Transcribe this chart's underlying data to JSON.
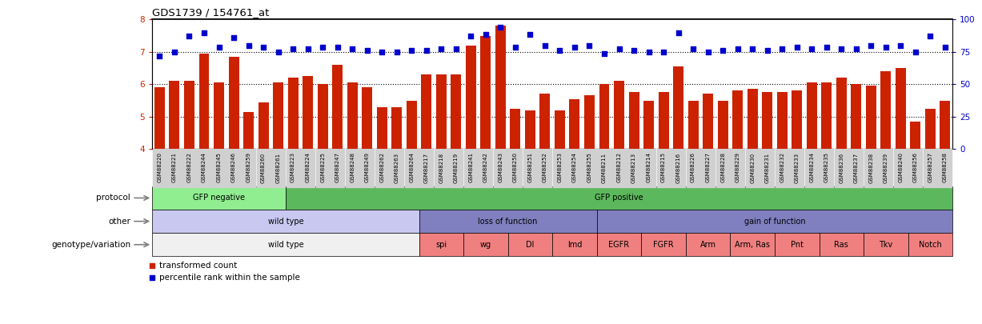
{
  "title": "GDS1739 / 154761_at",
  "samples": [
    "GSM88220",
    "GSM88221",
    "GSM88222",
    "GSM88244",
    "GSM88245",
    "GSM88246",
    "GSM88259",
    "GSM88260",
    "GSM88261",
    "GSM88223",
    "GSM88224",
    "GSM88225",
    "GSM88247",
    "GSM88248",
    "GSM88249",
    "GSM88262",
    "GSM88263",
    "GSM88264",
    "GSM88217",
    "GSM88218",
    "GSM88219",
    "GSM88241",
    "GSM88242",
    "GSM88243",
    "GSM88250",
    "GSM88251",
    "GSM88252",
    "GSM88253",
    "GSM88254",
    "GSM88255",
    "GSM88211",
    "GSM88212",
    "GSM88213",
    "GSM88214",
    "GSM88215",
    "GSM88216",
    "GSM88226",
    "GSM88227",
    "GSM88228",
    "GSM88229",
    "GSM88230",
    "GSM88231",
    "GSM88232",
    "GSM88233",
    "GSM88234",
    "GSM88235",
    "GSM88236",
    "GSM88237",
    "GSM88238",
    "GSM88239",
    "GSM88240",
    "GSM88256",
    "GSM88257",
    "GSM88258"
  ],
  "bar_values": [
    5.9,
    6.1,
    6.1,
    6.95,
    6.05,
    6.85,
    5.15,
    5.45,
    6.05,
    6.2,
    6.25,
    6.0,
    6.6,
    6.05,
    5.9,
    5.3,
    5.3,
    5.5,
    6.3,
    6.3,
    6.3,
    7.2,
    7.5,
    7.8,
    5.25,
    5.2,
    5.7,
    5.2,
    5.55,
    5.65,
    6.0,
    6.1,
    5.75,
    5.5,
    5.75,
    6.55,
    5.5,
    5.7,
    5.5,
    5.8,
    5.85,
    5.75,
    5.75,
    5.8,
    6.05,
    6.05,
    6.2,
    6.0,
    5.95,
    6.4,
    6.5,
    4.85,
    5.25,
    5.5
  ],
  "dot_values": [
    6.88,
    7.0,
    7.5,
    7.6,
    7.15,
    7.45,
    7.2,
    7.15,
    7.0,
    7.1,
    7.1,
    7.15,
    7.15,
    7.1,
    7.05,
    7.0,
    7.0,
    7.05,
    7.05,
    7.1,
    7.1,
    7.5,
    7.55,
    7.75,
    7.15,
    7.55,
    7.2,
    7.05,
    7.15,
    7.2,
    6.95,
    7.1,
    7.05,
    7.0,
    7.0,
    7.6,
    7.1,
    7.0,
    7.05,
    7.1,
    7.1,
    7.05,
    7.1,
    7.15,
    7.1,
    7.15,
    7.1,
    7.1,
    7.2,
    7.15,
    7.2,
    7.0,
    7.5,
    7.15
  ],
  "ylim_left": [
    4.0,
    8.0
  ],
  "yticks_left": [
    4,
    5,
    6,
    7,
    8
  ],
  "ylim_right": [
    0,
    100
  ],
  "yticks_right": [
    0,
    25,
    50,
    75,
    100
  ],
  "bar_color": "#CC2200",
  "dot_color": "#0000CC",
  "protocol_labels": [
    "GFP negative",
    "GFP positive"
  ],
  "protocol_boundaries": [
    0,
    9,
    54
  ],
  "protocol_colors": [
    "#90EE90",
    "#5CB85C"
  ],
  "other_labels": [
    "wild type",
    "loss of function",
    "gain of function"
  ],
  "other_boundaries": [
    0,
    18,
    30,
    54
  ],
  "other_colors": [
    "#C8C8F0",
    "#8080C0",
    "#8080C0"
  ],
  "genotype_labels": [
    "wild type",
    "spi",
    "wg",
    "Dl",
    "lmd",
    "EGFR",
    "FGFR",
    "Arm",
    "Arm, Ras",
    "Pnt",
    "Ras",
    "Tkv",
    "Notch"
  ],
  "genotype_boundaries": [
    0,
    18,
    21,
    24,
    27,
    30,
    33,
    36,
    39,
    42,
    45,
    48,
    51,
    54
  ],
  "genotype_color_wt": "#F0F0F0",
  "genotype_color_lof": "#F08080",
  "genotype_color_gof": "#F08080",
  "xtick_bg_color": "#D0D0D0"
}
